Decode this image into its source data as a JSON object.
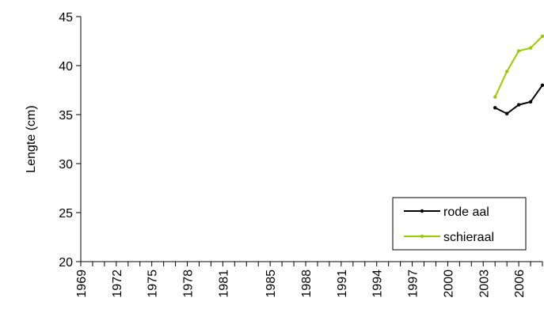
{
  "chart_data": {
    "type": "line",
    "title": "",
    "xlabel": "",
    "ylabel": "Lengte (cm)",
    "ylim": [
      20,
      45
    ],
    "yticks": [
      20,
      25,
      30,
      35,
      40,
      45
    ],
    "xlim": [
      1969,
      2008
    ],
    "xticks": [
      "1969",
      "1972",
      "1975",
      "1978",
      "1981",
      "1985",
      "1988",
      "1991",
      "1994",
      "1997",
      "2000",
      "2003",
      "2006"
    ],
    "grid": false,
    "legend_position": "bottom-right",
    "series": [
      {
        "name": "rode aal",
        "color": "#000000",
        "x": [
          2004,
          2005,
          2006,
          2007,
          2008
        ],
        "y": [
          35.7,
          35.1,
          36.0,
          36.3,
          38.0
        ]
      },
      {
        "name": "schieraal",
        "color": "#99cc00",
        "x": [
          2004,
          2005,
          2006,
          2007,
          2008
        ],
        "y": [
          36.8,
          39.4,
          41.5,
          41.8,
          43.0
        ]
      }
    ]
  }
}
